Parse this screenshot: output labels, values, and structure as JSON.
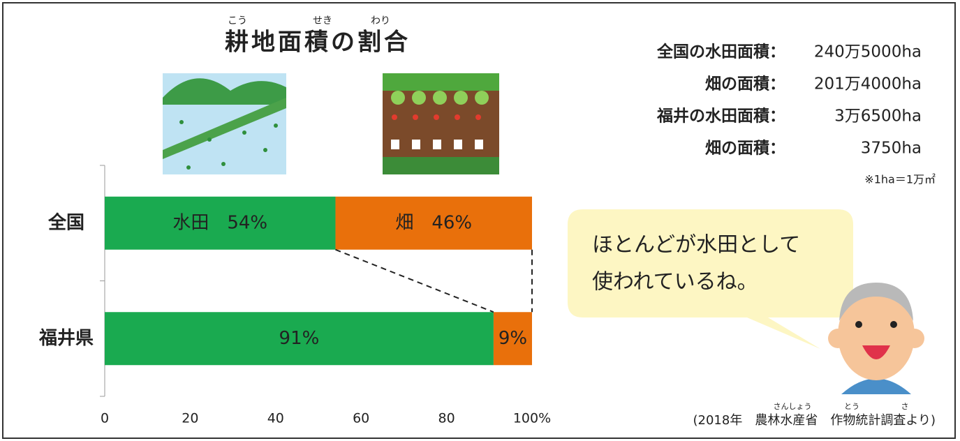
{
  "chart_data": {
    "type": "stacked-barh",
    "title": "耕地面積の割合",
    "categories": [
      "全国",
      "福井県"
    ],
    "series": [
      {
        "name": "水田",
        "color": "#1aaa50",
        "values": [
          54,
          91
        ],
        "value_labels": [
          "水田　54%",
          "91%"
        ]
      },
      {
        "name": "畑",
        "color": "#e9700b",
        "values": [
          46,
          9
        ],
        "value_labels": [
          "畑　46%",
          "9%"
        ]
      }
    ],
    "xlim": [
      0,
      100
    ],
    "xticks": [
      0,
      20,
      40,
      60,
      80,
      {
        "value": 100,
        "label": "100%"
      }
    ]
  },
  "title_ruby": [
    "こう",
    "せき",
    "わり"
  ],
  "stats": [
    {
      "label": "全国の水田面積：",
      "value": "240万5000ha"
    },
    {
      "label": "畑の面積：",
      "value": "201万4000ha"
    },
    {
      "label": "福井の水田面積：",
      "value": "3万6500ha"
    },
    {
      "label": "畑の面積：",
      "value": "3750ha"
    }
  ],
  "note": "※1ha＝1万㎡",
  "speech": [
    "ほとんどが水田として",
    "使われているね。"
  ],
  "source": "(2018年　農林水産省　作物統計調査より)",
  "source_ruby": [
    "さんしょう",
    "とう",
    "さ"
  ]
}
